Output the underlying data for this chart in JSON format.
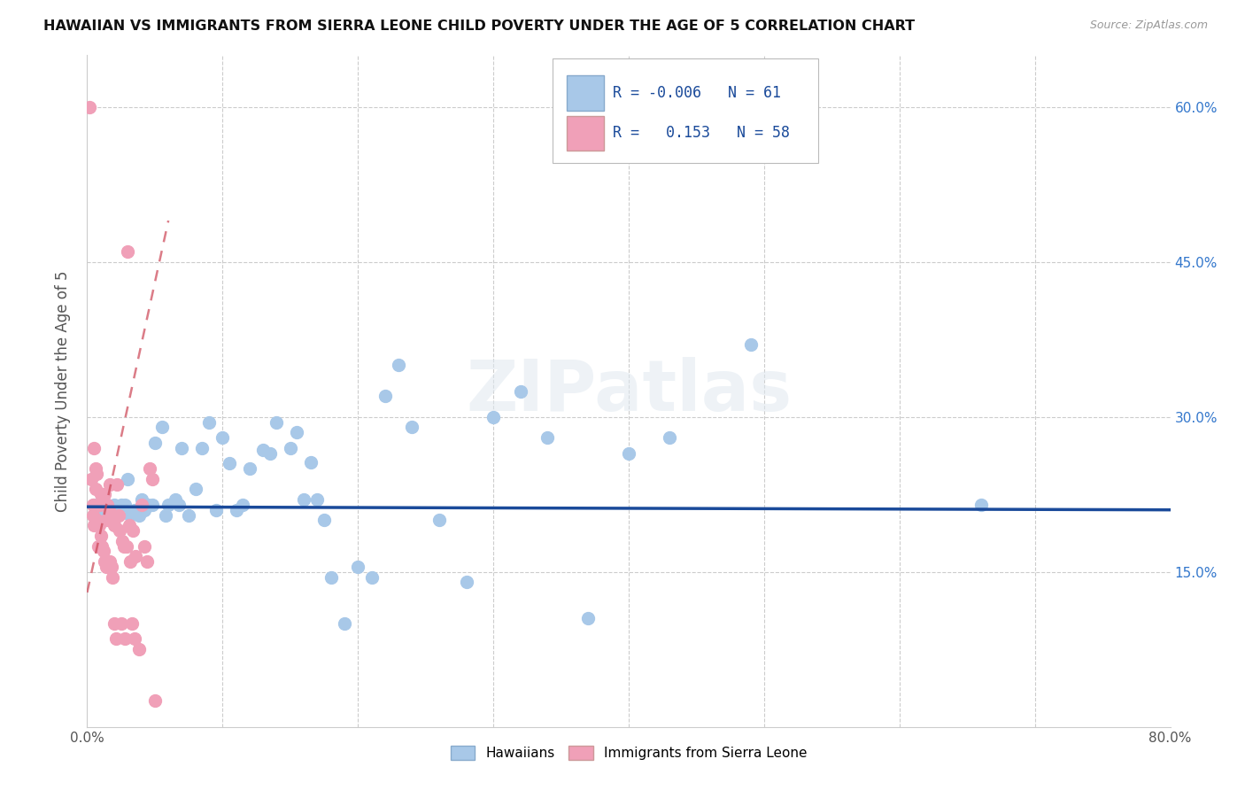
{
  "title": "HAWAIIAN VS IMMIGRANTS FROM SIERRA LEONE CHILD POVERTY UNDER THE AGE OF 5 CORRELATION CHART",
  "source": "Source: ZipAtlas.com",
  "ylabel": "Child Poverty Under the Age of 5",
  "xlim": [
    0.0,
    0.8
  ],
  "ylim": [
    0.0,
    0.65
  ],
  "xtick_positions": [
    0.0,
    0.1,
    0.2,
    0.3,
    0.4,
    0.5,
    0.6,
    0.7,
    0.8
  ],
  "xticklabels": [
    "0.0%",
    "",
    "",
    "",
    "",
    "",
    "",
    "",
    "80.0%"
  ],
  "ytick_positions": [
    0.0,
    0.15,
    0.3,
    0.45,
    0.6
  ],
  "yticklabels_right": [
    "",
    "15.0%",
    "30.0%",
    "45.0%",
    "60.0%"
  ],
  "legend_r_hawaiian": "-0.006",
  "legend_n_hawaiian": "61",
  "legend_r_sierra": "0.153",
  "legend_n_sierra": "58",
  "hawaiian_color": "#a8c8e8",
  "sierra_color": "#f0a0b8",
  "trend_hawaiian_color": "#1a4a9a",
  "trend_sierra_color": "#cc4455",
  "watermark": "ZIPatlas",
  "hawaiian_x": [
    0.005,
    0.008,
    0.01,
    0.012,
    0.015,
    0.018,
    0.02,
    0.022,
    0.025,
    0.028,
    0.03,
    0.032,
    0.035,
    0.038,
    0.04,
    0.042,
    0.045,
    0.048,
    0.05,
    0.055,
    0.058,
    0.06,
    0.065,
    0.068,
    0.07,
    0.075,
    0.08,
    0.085,
    0.09,
    0.095,
    0.1,
    0.105,
    0.11,
    0.115,
    0.12,
    0.13,
    0.135,
    0.14,
    0.15,
    0.155,
    0.16,
    0.165,
    0.17,
    0.175,
    0.18,
    0.19,
    0.2,
    0.21,
    0.22,
    0.23,
    0.24,
    0.26,
    0.28,
    0.3,
    0.32,
    0.34,
    0.37,
    0.4,
    0.43,
    0.49,
    0.66
  ],
  "hawaiian_y": [
    0.215,
    0.2,
    0.215,
    0.205,
    0.215,
    0.21,
    0.215,
    0.21,
    0.215,
    0.215,
    0.24,
    0.205,
    0.21,
    0.205,
    0.22,
    0.21,
    0.215,
    0.215,
    0.275,
    0.29,
    0.205,
    0.215,
    0.22,
    0.215,
    0.27,
    0.205,
    0.23,
    0.27,
    0.295,
    0.21,
    0.28,
    0.255,
    0.21,
    0.215,
    0.25,
    0.268,
    0.265,
    0.295,
    0.27,
    0.285,
    0.22,
    0.256,
    0.22,
    0.2,
    0.145,
    0.1,
    0.155,
    0.145,
    0.32,
    0.35,
    0.29,
    0.2,
    0.14,
    0.3,
    0.325,
    0.28,
    0.105,
    0.265,
    0.28,
    0.37,
    0.215
  ],
  "sierra_x": [
    0.002,
    0.003,
    0.004,
    0.004,
    0.005,
    0.005,
    0.006,
    0.006,
    0.007,
    0.007,
    0.008,
    0.008,
    0.009,
    0.009,
    0.01,
    0.01,
    0.011,
    0.011,
    0.012,
    0.012,
    0.013,
    0.013,
    0.014,
    0.014,
    0.015,
    0.015,
    0.016,
    0.016,
    0.017,
    0.017,
    0.018,
    0.018,
    0.019,
    0.02,
    0.02,
    0.021,
    0.022,
    0.023,
    0.024,
    0.025,
    0.026,
    0.027,
    0.028,
    0.029,
    0.03,
    0.031,
    0.032,
    0.033,
    0.034,
    0.035,
    0.036,
    0.038,
    0.04,
    0.042,
    0.044,
    0.046,
    0.048,
    0.05
  ],
  "sierra_y": [
    0.6,
    0.24,
    0.215,
    0.205,
    0.27,
    0.195,
    0.25,
    0.23,
    0.245,
    0.2,
    0.215,
    0.175,
    0.215,
    0.195,
    0.225,
    0.185,
    0.225,
    0.175,
    0.225,
    0.17,
    0.225,
    0.16,
    0.2,
    0.155,
    0.215,
    0.16,
    0.21,
    0.155,
    0.235,
    0.16,
    0.205,
    0.155,
    0.145,
    0.1,
    0.195,
    0.085,
    0.235,
    0.205,
    0.19,
    0.1,
    0.18,
    0.175,
    0.085,
    0.175,
    0.46,
    0.195,
    0.16,
    0.1,
    0.19,
    0.085,
    0.165,
    0.075,
    0.215,
    0.175,
    0.16,
    0.25,
    0.24,
    0.025
  ],
  "trend_hawaiian_y_start": 0.213,
  "trend_hawaiian_y_end": 0.21,
  "trend_sierra_x_start": 0.0,
  "trend_sierra_x_end": 0.06,
  "trend_sierra_y_start": 0.13,
  "trend_sierra_y_end": 0.49
}
